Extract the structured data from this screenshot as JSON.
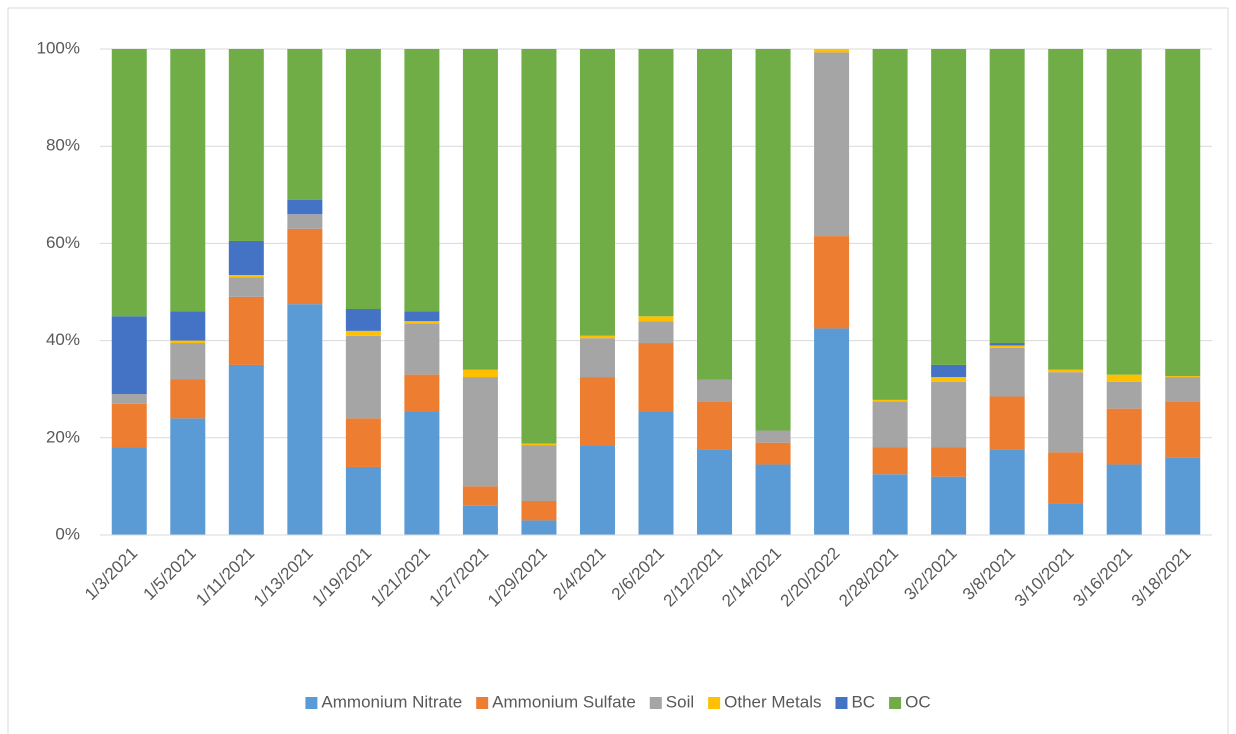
{
  "chart_data": {
    "type": "stacked_bar_100",
    "categories": [
      "1/3/2021",
      "1/5/2021",
      "1/11/2021",
      "1/13/2021",
      "1/19/2021",
      "1/21/2021",
      "1/27/2021",
      "1/29/2021",
      "2/4/2021",
      "2/6/2021",
      "2/12/2021",
      "2/14/2021",
      "2/20/2022",
      "2/28/2021",
      "3/2/2021",
      "3/8/2021",
      "3/10/2021",
      "3/16/2021",
      "3/18/2021"
    ],
    "series": [
      {
        "name": "Ammonium Nitrate",
        "color": "#5b9bd5",
        "values": [
          18,
          24,
          35,
          47.5,
          14,
          25.5,
          6,
          3,
          18.5,
          25.5,
          17.5,
          14.5,
          42.5,
          12.5,
          12,
          17.5,
          6.5,
          14.5,
          16
        ]
      },
      {
        "name": "Ammonium Sulfate",
        "color": "#ed7d31",
        "values": [
          9,
          8,
          14,
          15.5,
          10,
          7.5,
          4,
          4,
          14,
          14,
          10,
          4.5,
          19,
          5.5,
          6,
          11,
          10.5,
          11.5,
          11.5
        ]
      },
      {
        "name": "Soil",
        "color": "#a5a5a5",
        "values": [
          2,
          7.5,
          4,
          3,
          17,
          10.5,
          22.5,
          11.5,
          8,
          4.5,
          4.5,
          2.5,
          37.8,
          9.5,
          13.5,
          10,
          16.5,
          5.5,
          5
        ]
      },
      {
        "name": "Other Metals",
        "color": "#ffc000",
        "values": [
          0,
          0.5,
          0.5,
          0,
          1,
          0.5,
          1.5,
          0.3,
          0.5,
          1,
          0,
          0,
          0.7,
          0.3,
          1,
          0.5,
          0.5,
          1.5,
          0.2
        ]
      },
      {
        "name": "BC",
        "color": "#4472c4",
        "values": [
          16,
          6,
          7,
          3,
          4.5,
          2,
          0,
          0,
          0,
          0,
          0,
          0,
          0,
          0,
          2.5,
          0.5,
          0,
          0,
          0
        ]
      },
      {
        "name": "OC",
        "color": "#70ad47",
        "values": [
          55,
          54,
          39.5,
          31,
          53.5,
          54,
          66,
          81.2,
          59,
          55,
          68,
          78.5,
          0,
          72.2,
          65,
          60.5,
          66,
          67,
          67.3
        ]
      }
    ],
    "ylim": [
      0,
      100
    ],
    "yticks": [
      {
        "value": 0,
        "label": "0%"
      },
      {
        "value": 20,
        "label": "20%"
      },
      {
        "value": 40,
        "label": "40%"
      },
      {
        "value": 60,
        "label": "60%"
      },
      {
        "value": 80,
        "label": "80%"
      },
      {
        "value": 100,
        "label": "100%"
      }
    ],
    "grid": true,
    "legend": "bottom"
  }
}
